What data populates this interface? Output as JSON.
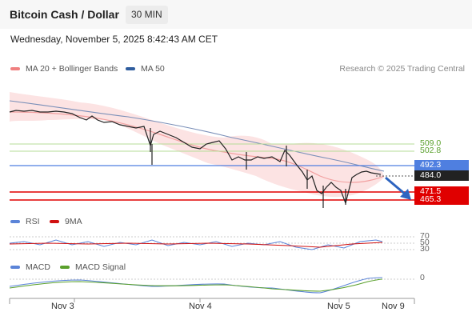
{
  "header": {
    "title": "Bitcoin Cash / Dollar",
    "timeframe": "30 MIN"
  },
  "timestamp": "Wednesday, November 5, 2025 8:42:43 AM CET",
  "legend_main": [
    {
      "label": "MA 20 + Bollinger Bands",
      "color": "#f08080"
    },
    {
      "label": "MA 50",
      "color": "#2f5d9e"
    }
  ],
  "credit": "Research © 2025 Trading Central",
  "price_levels": [
    {
      "value": "509.0",
      "color": "#8fc46b",
      "style": "plain"
    },
    {
      "value": "502.8",
      "color": "#8fc46b",
      "style": "plain"
    },
    {
      "value": "492.3",
      "color": "#4f7fe0",
      "style": "filled"
    },
    {
      "value": "484.0",
      "color": "#222222",
      "style": "filled"
    },
    {
      "value": "471.5",
      "color": "#e00000",
      "style": "filled"
    },
    {
      "value": "465.3",
      "color": "#e00000",
      "style": "filled"
    }
  ],
  "legend_rsi": [
    {
      "label": "RSI",
      "color": "#5b84d8"
    },
    {
      "label": "9MA",
      "color": "#d01010"
    }
  ],
  "rsi_levels": [
    "70",
    "50",
    "30"
  ],
  "legend_macd": [
    {
      "label": "MACD",
      "color": "#5b84d8"
    },
    {
      "label": "MACD Signal",
      "color": "#5aa02c"
    }
  ],
  "macd_level": "0",
  "x_labels": [
    "Nov 3",
    "Nov 4",
    "Nov 5",
    "Nov 9"
  ]
}
